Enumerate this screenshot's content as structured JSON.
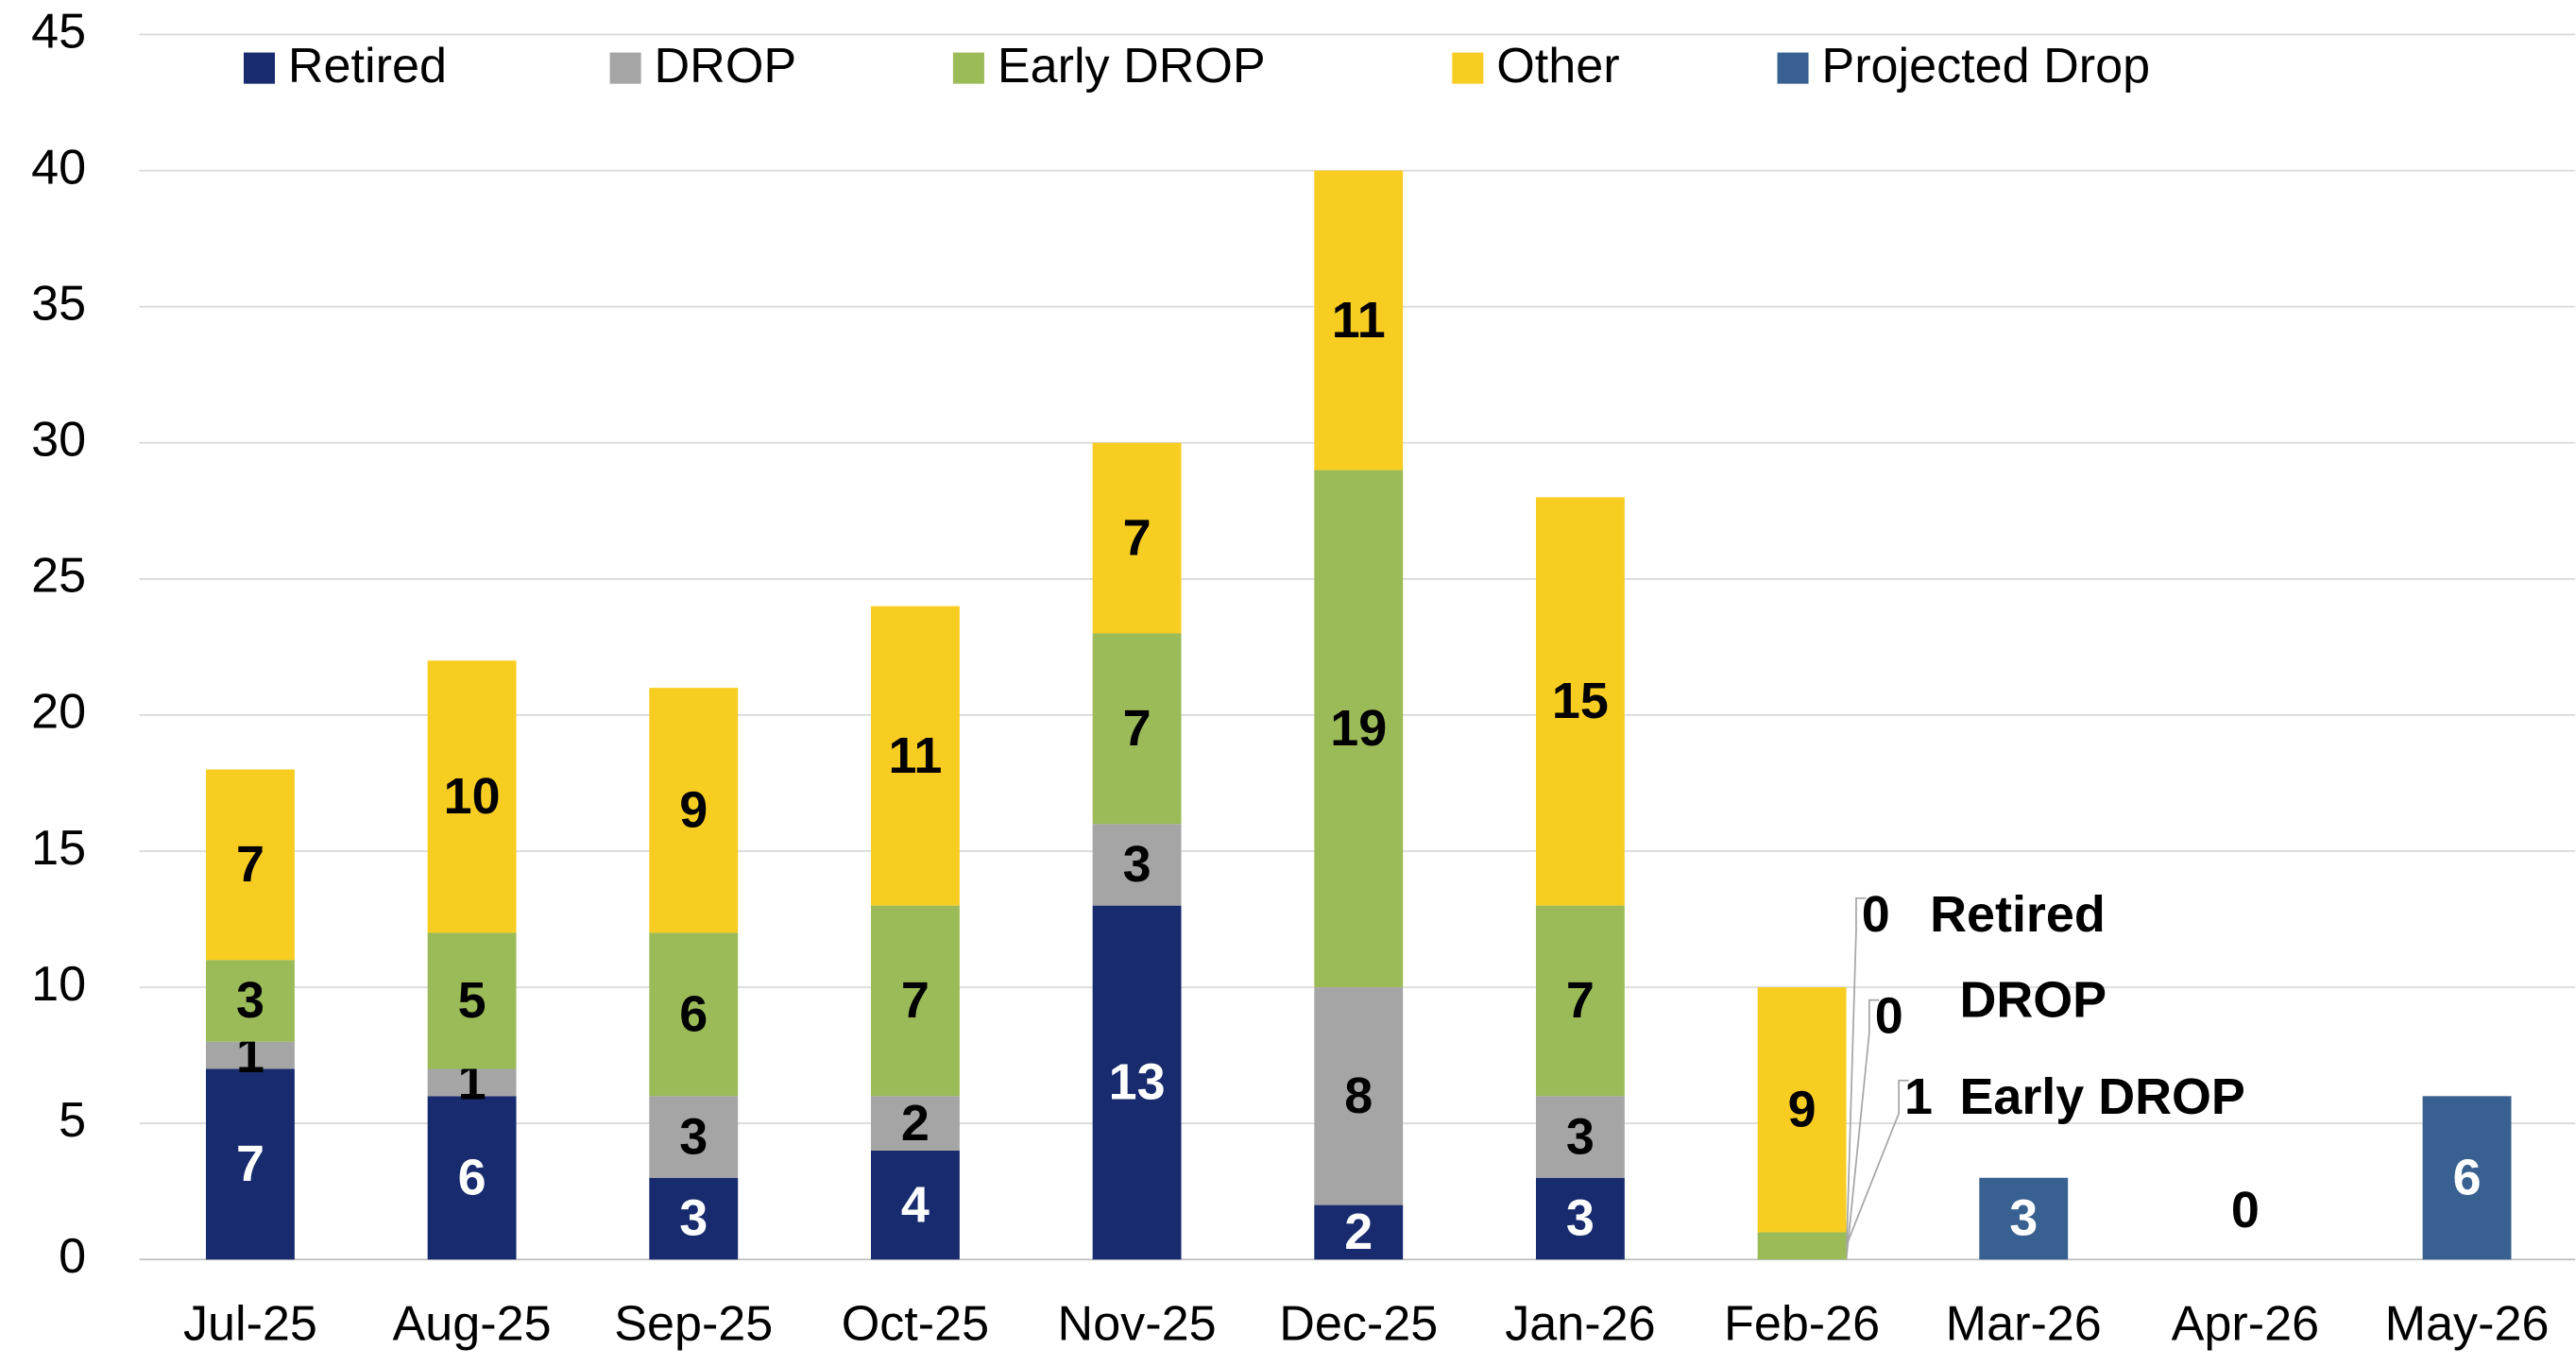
{
  "chart_data": {
    "type": "stacked-bar",
    "categories": [
      "Jul-25",
      "Aug-25",
      "Sep-25",
      "Oct-25",
      "Nov-25",
      "Dec-25",
      "Jan-26",
      "Feb-26",
      "Mar-26",
      "Apr-26",
      "May-26"
    ],
    "series": [
      {
        "name": "Retired",
        "color": "#172b6e",
        "values": [
          7,
          6,
          3,
          4,
          13,
          2,
          3,
          0,
          null,
          null,
          null
        ]
      },
      {
        "name": "DROP",
        "color": "#a5a5a5",
        "values": [
          1,
          1,
          3,
          2,
          3,
          8,
          3,
          0,
          null,
          null,
          null
        ]
      },
      {
        "name": "Early DROP",
        "color": "#9bbb59",
        "values": [
          3,
          5,
          6,
          7,
          7,
          19,
          7,
          1,
          null,
          null,
          null
        ]
      },
      {
        "name": "Other",
        "color": "#f8cd22",
        "values": [
          7,
          10,
          9,
          11,
          7,
          11,
          15,
          9,
          null,
          null,
          null
        ]
      },
      {
        "name": "Projected Drop",
        "color": "#386192",
        "values": [
          null,
          null,
          null,
          null,
          null,
          null,
          null,
          null,
          3,
          0,
          6
        ]
      }
    ],
    "ylim": [
      0,
      45
    ],
    "yticks": [
      0,
      5,
      10,
      15,
      20,
      25,
      30,
      35,
      40,
      45
    ],
    "grid": true,
    "legend": "top"
  }
}
